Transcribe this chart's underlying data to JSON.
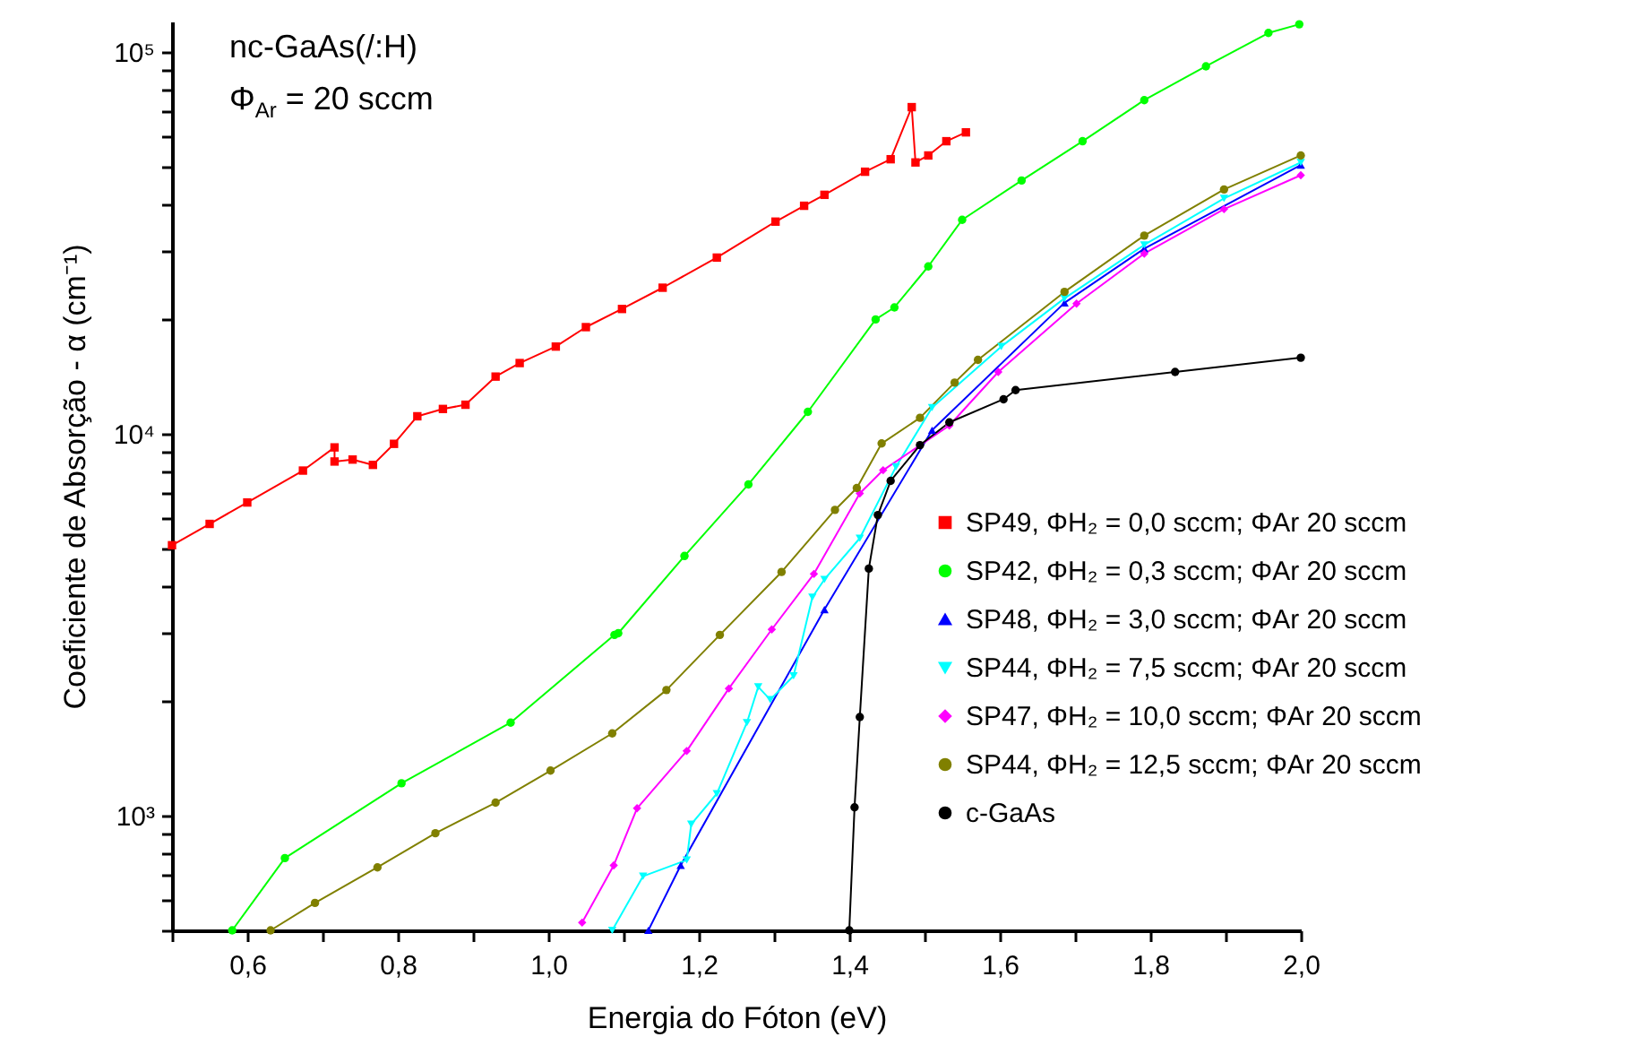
{
  "chart_data": {
    "type": "line",
    "xlabel": "Energia do Fóton (eV)",
    "ylabel": "Coeficiente de Absorção - α (cm⁻¹)",
    "annotations": [
      "nc-GaAs(/:H)",
      "Φ$_{Ar}$ = 20 sccm"
    ],
    "log": "y",
    "grid": false,
    "legend": "bottom right",
    "xlim": [
      0.5,
      2.0
    ],
    "xticks": [
      {
        "value": 0.5,
        "label": null
      },
      {
        "value": 0.6,
        "label": "0,6"
      },
      {
        "value": 0.7,
        "label": null
      },
      {
        "value": 0.8,
        "label": "0,8"
      },
      {
        "value": 0.9,
        "label": null
      },
      {
        "value": 1.0,
        "label": "1,0"
      },
      {
        "value": 1.1,
        "label": null
      },
      {
        "value": 1.2,
        "label": "1,2"
      },
      {
        "value": 1.3,
        "label": null
      },
      {
        "value": 1.4,
        "label": "1,4"
      },
      {
        "value": 1.5,
        "label": null
      },
      {
        "value": 1.6,
        "label": "1,6"
      },
      {
        "value": 1.7,
        "label": null
      },
      {
        "value": 1.8,
        "label": "1,8"
      },
      {
        "value": 1.9,
        "label": null
      },
      {
        "value": 2.0,
        "label": "2,0"
      }
    ],
    "ylim": [
      500,
      120000
    ],
    "yticks": [
      {
        "value": 500,
        "label": null
      },
      {
        "value": 600,
        "label": null
      },
      {
        "value": 700,
        "label": null
      },
      {
        "value": 800,
        "label": null
      },
      {
        "value": 900,
        "label": null
      },
      {
        "value": 1000,
        "label": "10³"
      },
      {
        "value": 2000,
        "label": null
      },
      {
        "value": 3000,
        "label": null
      },
      {
        "value": 4000,
        "label": null
      },
      {
        "value": 5000,
        "label": null
      },
      {
        "value": 6000,
        "label": null
      },
      {
        "value": 7000,
        "label": null
      },
      {
        "value": 8000,
        "label": null
      },
      {
        "value": 9000,
        "label": null
      },
      {
        "value": 10000,
        "label": "10⁴"
      },
      {
        "value": 20000,
        "label": null
      },
      {
        "value": 30000,
        "label": null
      },
      {
        "value": 40000,
        "label": null
      },
      {
        "value": 50000,
        "label": null
      },
      {
        "value": 60000,
        "label": null
      },
      {
        "value": 70000,
        "label": null
      },
      {
        "value": 80000,
        "label": null
      },
      {
        "value": 90000,
        "label": null
      },
      {
        "value": 100000,
        "label": "10⁵"
      }
    ],
    "series": [
      {
        "name": "SP49, ΦH₂ = 0,0 sccm; ΦAr 20 sccm",
        "color": "#ff0000",
        "marker": "square",
        "x": [
          0.5,
          0.55,
          0.6,
          0.674,
          0.716,
          0.716,
          0.74,
          0.767,
          0.795,
          0.826,
          0.86,
          0.89,
          0.93,
          0.962,
          1.01,
          1.05,
          1.098,
          1.152,
          1.224,
          1.302,
          1.34,
          1.367,
          1.421,
          1.455,
          1.483,
          1.488,
          1.505,
          1.529,
          1.555
        ],
        "values": [
          5100,
          5800,
          6600,
          8000,
          9200,
          8450,
          8550,
          8280,
          9400,
          11100,
          11600,
          11900,
          14100,
          15300,
          16900,
          19000,
          21200,
          24100,
          28900,
          35900,
          39500,
          42200,
          48500,
          52300,
          71600,
          51300,
          53500,
          58300,
          61500
        ]
      },
      {
        "name": "SP42, ΦH₂ = 0,3 sccm; ΦAr 20 sccm",
        "color": "#00ff00",
        "marker": "circle",
        "x": [
          0.58,
          0.65,
          0.805,
          0.95,
          1.088,
          1.093,
          1.181,
          1.266,
          1.345,
          1.435,
          1.46,
          1.505,
          1.55,
          1.629,
          1.71,
          1.792,
          1.874,
          1.957,
          1.998
        ],
        "values": [
          500,
          773,
          1214,
          1750,
          2970,
          3000,
          4780,
          7360,
          11400,
          19900,
          21400,
          27400,
          36300,
          46000,
          58300,
          74700,
          91600,
          112000,
          118000
        ]
      },
      {
        "name": "SP48, ΦH₂ = 3,0 sccm; ΦAr 20 sccm",
        "color": "#0000ff",
        "marker": "triangle-up",
        "x": [
          1.133,
          1.176,
          1.367,
          1.51,
          1.686,
          1.792,
          2.0
        ],
        "values": [
          500,
          740,
          3460,
          10200,
          22000,
          30500,
          50500
        ]
      },
      {
        "name": "SP44, ΦH₂ = 7,5 sccm; ΦAr 20 sccm",
        "color": "#00ffff",
        "marker": "triangle-down",
        "x": [
          1.085,
          1.126,
          1.184,
          1.19,
          1.224,
          1.264,
          1.279,
          1.295,
          1.326,
          1.351,
          1.367,
          1.414,
          1.462,
          1.51,
          1.602,
          1.686,
          1.792,
          1.898,
          2.0
        ],
        "values": [
          500,
          693,
          764,
          948,
          1140,
          1750,
          2170,
          2010,
          2320,
          3730,
          4150,
          5320,
          8180,
          11700,
          16900,
          22600,
          31200,
          41300,
          51300
        ]
      },
      {
        "name": "SP47, ΦH₂ = 10,0 sccm; ΦAr 20 sccm",
        "color": "#ff00ff",
        "marker": "diamond",
        "x": [
          1.045,
          1.087,
          1.118,
          1.184,
          1.24,
          1.297,
          1.353,
          1.414,
          1.445,
          1.533,
          1.598,
          1.702,
          1.792,
          1.898,
          2.0
        ],
        "values": [
          524,
          740,
          1044,
          1475,
          2150,
          3070,
          4290,
          6970,
          8020,
          10500,
          14500,
          21900,
          29600,
          38700,
          47500
        ]
      },
      {
        "name": "SP44, ΦH₂ = 12,5 sccm; ΦAr 20 sccm",
        "color": "#808000",
        "marker": "circle",
        "x": [
          0.631,
          0.69,
          0.773,
          0.85,
          0.93,
          1.003,
          1.085,
          1.157,
          1.228,
          1.31,
          1.381,
          1.41,
          1.443,
          1.494,
          1.54,
          1.571,
          1.686,
          1.792,
          1.898,
          2.0
        ],
        "values": [
          500,
          590,
          731,
          898,
          1080,
          1310,
          1640,
          2130,
          2970,
          4340,
          6310,
          7200,
          9420,
          11000,
          13600,
          15600,
          23500,
          33000,
          43600,
          53500
        ]
      },
      {
        "name": "c-GaAs",
        "color": "#000000",
        "marker": "circle",
        "x": [
          1.4,
          1.407,
          1.414,
          1.426,
          1.438,
          1.455,
          1.494,
          1.533,
          1.605,
          1.621,
          1.833,
          2.0
        ],
        "values": [
          500,
          1050,
          1810,
          4430,
          6120,
          7520,
          9330,
          10700,
          12300,
          13000,
          14500,
          15800
        ]
      }
    ]
  }
}
